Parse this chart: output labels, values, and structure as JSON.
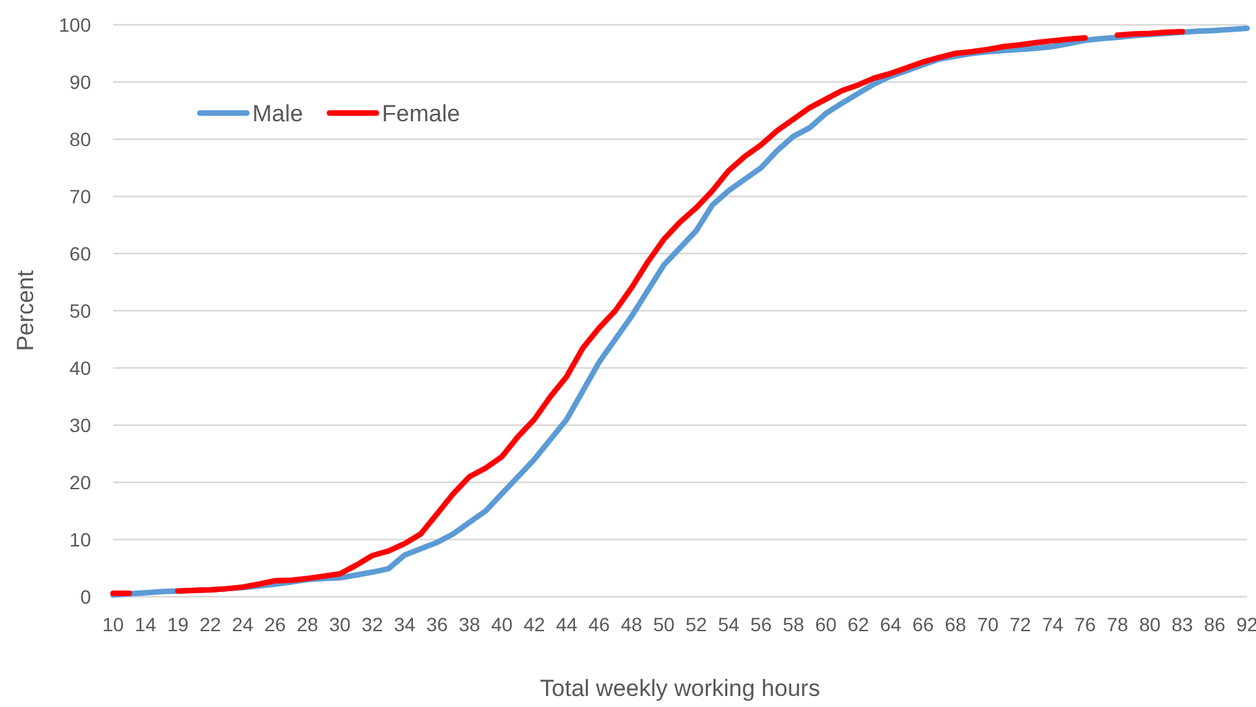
{
  "chart_data": {
    "type": "line",
    "xlabel": "Total weekly working hours",
    "ylabel": "Percent",
    "categories": [
      "10",
      null,
      "14",
      null,
      "19",
      null,
      "22",
      null,
      "24",
      null,
      "26",
      null,
      "28",
      null,
      "30",
      null,
      "32",
      null,
      "34",
      null,
      "36",
      null,
      "38",
      null,
      "40",
      null,
      "42",
      null,
      "44",
      null,
      "46",
      null,
      "48",
      null,
      "50",
      null,
      "52",
      null,
      "54",
      null,
      "56",
      null,
      "58",
      null,
      "60",
      null,
      "62",
      null,
      "64",
      null,
      "66",
      null,
      "68",
      null,
      "70",
      null,
      "72",
      null,
      "74",
      null,
      "76",
      null,
      "78",
      null,
      "80",
      null,
      "83",
      null,
      "86",
      null,
      "92"
    ],
    "series": [
      {
        "name": "Male",
        "color": "#5b9bd5",
        "values": [
          0.3,
          0.5,
          0.7,
          0.9,
          1.0,
          1.1,
          1.2,
          1.4,
          1.6,
          1.9,
          2.2,
          2.6,
          3.0,
          3.2,
          3.3,
          3.8,
          4.3,
          4.9,
          7.3,
          8.4,
          9.5,
          11,
          13,
          15,
          18,
          21,
          24,
          27.5,
          31,
          36,
          41,
          45,
          49,
          53.5,
          58,
          61,
          64,
          68.5,
          71,
          73,
          75,
          78,
          80.5,
          82,
          84.5,
          86.3,
          88,
          89.7,
          91,
          92,
          93,
          94,
          94.5,
          95,
          95.3,
          95.5,
          95.7,
          95.9,
          96.2,
          96.7,
          97.3,
          97.6,
          97.8,
          98.1,
          98.3,
          98.5,
          98.7,
          98.9,
          99.0,
          99.2,
          99.4
        ]
      },
      {
        "name": "Female",
        "color": "#ff0000",
        "values": [
          0.6,
          0.6,
          null,
          null,
          1.0,
          1.1,
          1.2,
          1.4,
          1.7,
          2.2,
          2.8,
          2.9,
          3.2,
          3.6,
          4.0,
          5.5,
          7.2,
          8,
          9.3,
          11,
          14.5,
          18,
          21,
          22.5,
          24.5,
          28,
          31,
          35,
          38.5,
          43.5,
          47,
          50,
          54,
          58.5,
          62.5,
          65.5,
          68,
          71,
          74.5,
          77,
          79,
          81.5,
          83.5,
          85.5,
          87,
          88.5,
          89.5,
          90.7,
          91.5,
          92.5,
          93.5,
          94.3,
          95,
          95.3,
          95.7,
          96.2,
          96.5,
          96.9,
          97.2,
          97.5,
          97.7,
          null,
          98.2,
          98.4,
          98.5,
          98.7,
          98.8,
          null,
          null,
          null,
          null
        ]
      }
    ],
    "ylim": [
      0,
      100
    ],
    "yticks": [
      0,
      10,
      20,
      30,
      40,
      50,
      60,
      70,
      80,
      90,
      100
    ],
    "grid": "y",
    "legend": "top left",
    "line_style": "solid",
    "marker": "none"
  }
}
